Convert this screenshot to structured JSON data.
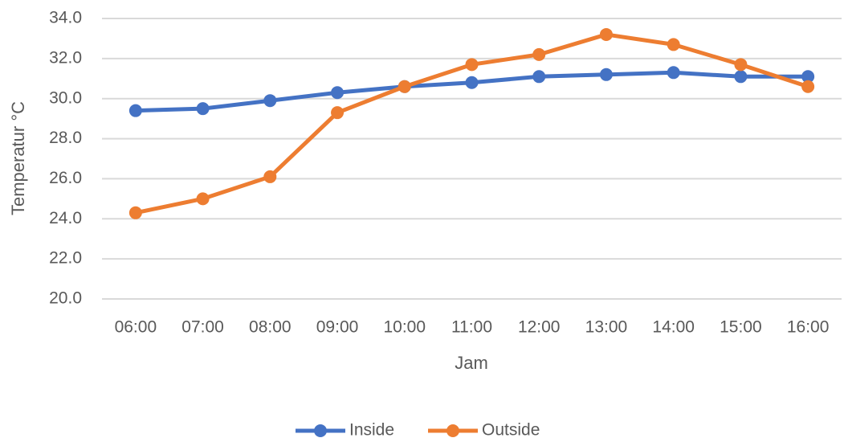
{
  "chart_data": {
    "type": "line",
    "categories": [
      "06:00",
      "07:00",
      "08:00",
      "09:00",
      "10:00",
      "11:00",
      "12:00",
      "13:00",
      "14:00",
      "15:00",
      "16:00"
    ],
    "series": [
      {
        "name": "Inside",
        "color": "#4472c4",
        "values": [
          29.4,
          29.5,
          29.9,
          30.3,
          30.6,
          30.8,
          31.1,
          31.2,
          31.3,
          31.1,
          31.1
        ]
      },
      {
        "name": "Outside",
        "color": "#ed7d31",
        "values": [
          24.3,
          25.0,
          26.1,
          29.3,
          30.6,
          31.7,
          32.2,
          33.2,
          32.7,
          31.7,
          30.6
        ]
      }
    ],
    "ylim": [
      20,
      34
    ],
    "yticks": [
      {
        "value": 20,
        "label": "20.0"
      },
      {
        "value": 22,
        "label": "22.0"
      },
      {
        "value": 24,
        "label": "24.0"
      },
      {
        "value": 26,
        "label": "26.0"
      },
      {
        "value": 28,
        "label": "28.0"
      },
      {
        "value": 30,
        "label": "30.0"
      },
      {
        "value": 32,
        "label": "32.0"
      },
      {
        "value": 34,
        "label": "34.0"
      }
    ],
    "xlabel": "Jam",
    "ylabel": "Temperatur °C",
    "grid": true,
    "legend": "bottom"
  }
}
